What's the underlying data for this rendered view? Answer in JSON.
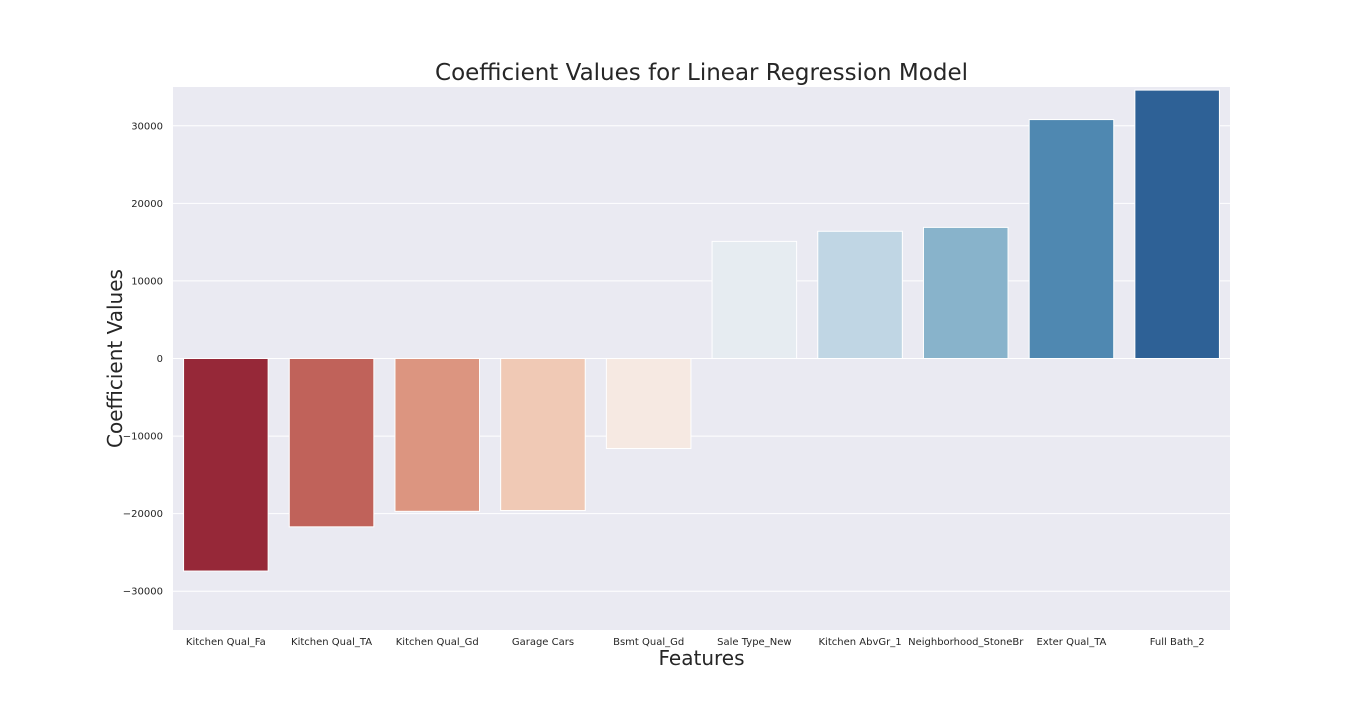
{
  "chart_data": {
    "type": "bar",
    "title": "Coefficient Values for Linear Regression Model",
    "xlabel": "Features",
    "ylabel": "Coefficient Values",
    "categories": [
      "Kitchen Qual_Fa",
      "Kitchen Qual_TA",
      "Kitchen Qual_Gd",
      "Garage Cars",
      "Bsmt Qual_Gd",
      "Sale Type_New",
      "Kitchen AbvGr_1",
      "Neighborhood_StoneBr",
      "Exter Qual_TA",
      "Full Bath_2"
    ],
    "values": [
      -27400,
      -21700,
      -19700,
      -19600,
      -11600,
      15100,
      16400,
      16900,
      30800,
      34600
    ],
    "colors": [
      "#962838",
      "#c0625a",
      "#dc9580",
      "#f0c9b5",
      "#f6e9e2",
      "#e6ecf1",
      "#c0d6e4",
      "#88b3cb",
      "#4f88b1",
      "#2e6196"
    ],
    "ylim": [
      -35000,
      35000
    ],
    "yticks": [
      -30000,
      -20000,
      -10000,
      0,
      10000,
      20000,
      30000
    ],
    "ytick_labels": [
      "−30000",
      "−20000",
      "−10000",
      "0",
      "10000",
      "20000",
      "30000"
    ],
    "grid": true,
    "background_color": "#eaeaf2",
    "grid_color": "#ffffff"
  }
}
